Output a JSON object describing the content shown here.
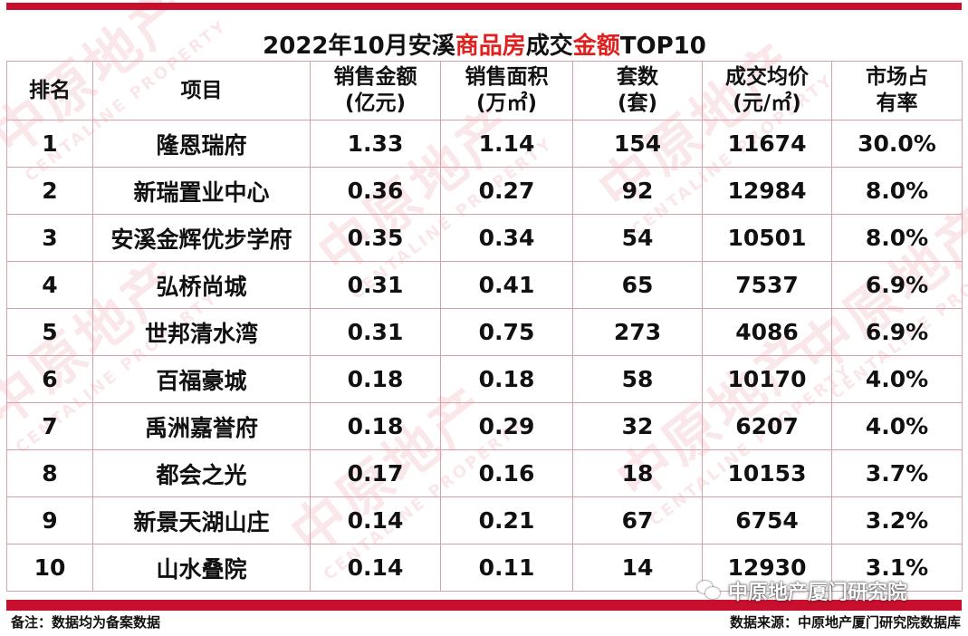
{
  "table": {
    "title_parts": [
      "2022年10月安溪",
      "商品房",
      "成交",
      "金额",
      "TOP10"
    ],
    "headers": {
      "rank": "排名",
      "project": "项目",
      "sales_amount_line1": "销售金额",
      "sales_amount_line2": "(亿元)",
      "sales_area_line1": "销售面积",
      "sales_area_line2": "(万㎡)",
      "units_line1": "套数",
      "units_line2": "(套)",
      "avg_price_line1": "成交均价",
      "avg_price_line2": "(元/㎡)",
      "share_line1": "市场占",
      "share_line2": "有率"
    },
    "rows": [
      {
        "rank": "1",
        "project": "隆恩瑞府",
        "amount": "1.33",
        "area": "1.14",
        "units": "154",
        "price": "11674",
        "share": "30.0%"
      },
      {
        "rank": "2",
        "project": "新瑞置业中心",
        "amount": "0.36",
        "area": "0.27",
        "units": "92",
        "price": "12984",
        "share": "8.0%"
      },
      {
        "rank": "3",
        "project": "安溪金辉优步学府",
        "amount": "0.35",
        "area": "0.34",
        "units": "54",
        "price": "10501",
        "share": "8.0%"
      },
      {
        "rank": "4",
        "project": "弘桥尚城",
        "amount": "0.31",
        "area": "0.41",
        "units": "65",
        "price": "7537",
        "share": "6.9%"
      },
      {
        "rank": "5",
        "project": "世邦清水湾",
        "amount": "0.31",
        "area": "0.75",
        "units": "273",
        "price": "4086",
        "share": "6.9%"
      },
      {
        "rank": "6",
        "project": "百福豪城",
        "amount": "0.18",
        "area": "0.18",
        "units": "58",
        "price": "10170",
        "share": "4.0%"
      },
      {
        "rank": "7",
        "project": "禹洲嘉誉府",
        "amount": "0.18",
        "area": "0.29",
        "units": "32",
        "price": "6207",
        "share": "4.0%"
      },
      {
        "rank": "8",
        "project": "都会之光",
        "amount": "0.17",
        "area": "0.16",
        "units": "18",
        "price": "10153",
        "share": "3.7%"
      },
      {
        "rank": "9",
        "project": "新景天湖山庄",
        "amount": "0.14",
        "area": "0.21",
        "units": "67",
        "price": "6754",
        "share": "3.2%"
      },
      {
        "rank": "10",
        "project": "山水叠院",
        "amount": "0.14",
        "area": "0.11",
        "units": "14",
        "price": "12930",
        "share": "3.1%"
      }
    ]
  },
  "footer": {
    "note": "备注：数据均为备案数据",
    "source": "数据来源：中原地产厦门研究院数据库"
  },
  "wechat_badge": {
    "text": "中原地产厦门研究院",
    "icon": "wechat-icon"
  },
  "watermark": {
    "cn": "中原地产",
    "en": "CENTALINE PROPERTY"
  },
  "colors": {
    "accent": "#c8102e",
    "highlight_text": "#e0201e",
    "grid_line": "#d9a0a8"
  }
}
